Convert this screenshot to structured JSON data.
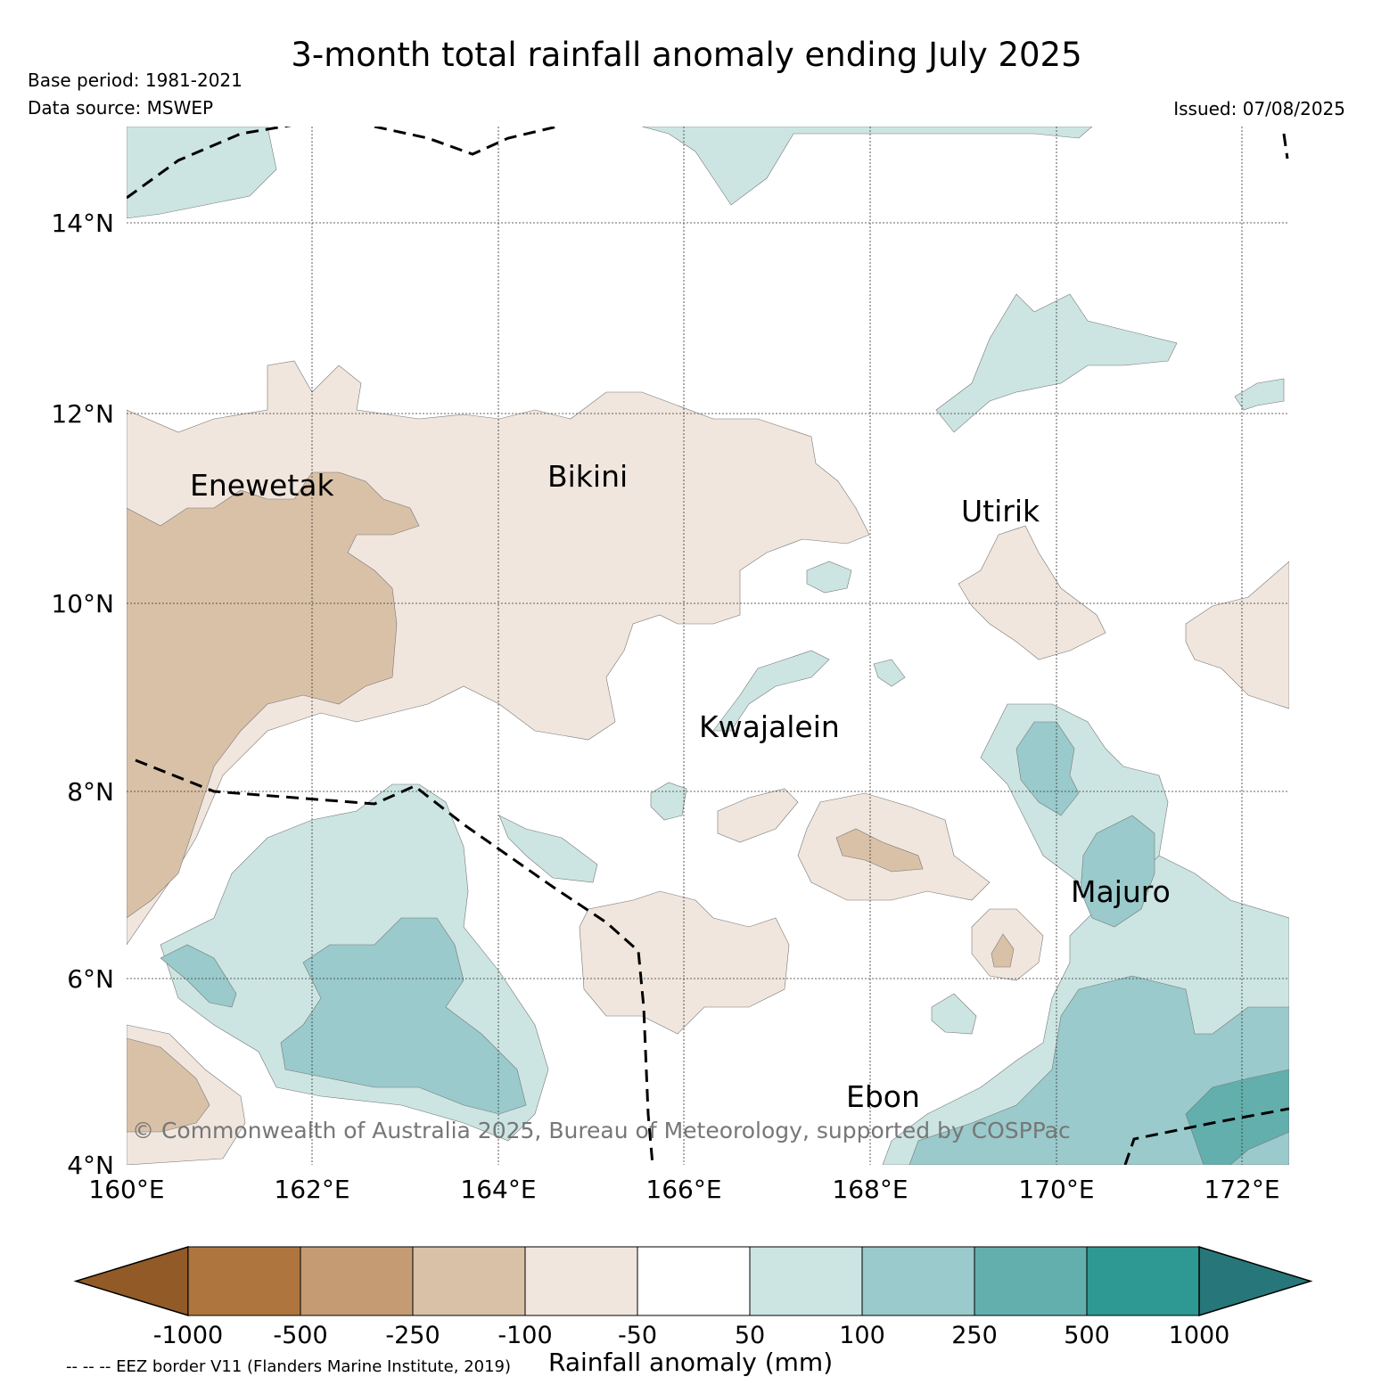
{
  "header": {
    "title": "3-month total rainfall anomaly ending July 2025",
    "base_period": "Base period: 1981-2021",
    "data_source": "Data source: MSWEP",
    "issued": "Issued: 07/08/2025"
  },
  "map": {
    "lon_ticks": [
      "160°E",
      "162°E",
      "164°E",
      "166°E",
      "168°E",
      "170°E",
      "172°E"
    ],
    "lat_ticks": [
      "14°N",
      "12°N",
      "10°N",
      "8°N",
      "6°N",
      "4°N"
    ],
    "places": {
      "enewetak": "Enewetak",
      "bikini": "Bikini",
      "utirik": "Utirik",
      "kwajalein": "Kwajalein",
      "majuro": "Majuro",
      "ebon": "Ebon"
    },
    "copyright": "© Commonwealth of Australia 2025, Bureau of Meteorology, supported by COSPPac",
    "eez_note": "-- -- -- EEZ border V11 (Flanders Marine Institute, 2019)"
  },
  "colorbar": {
    "title": "Rainfall anomaly (mm)",
    "labels": [
      "-1000",
      "-500",
      "-250",
      "-100",
      "-50",
      "50",
      "100",
      "250",
      "500",
      "1000"
    ],
    "colors": [
      "#915a26",
      "#ae763e",
      "#c49b73",
      "#d9c1a8",
      "#f0e6dd",
      "#ffffff",
      "#cce5e3",
      "#9acacb",
      "#62afad",
      "#2e9893",
      "#27777a"
    ]
  }
}
